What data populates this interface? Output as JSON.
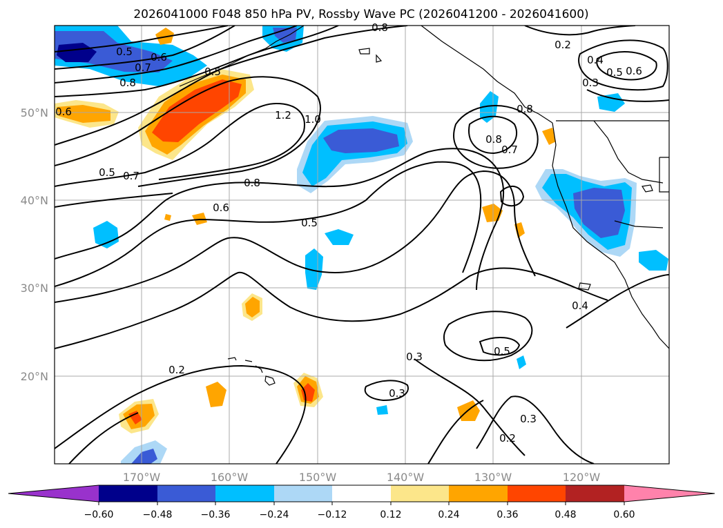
{
  "title": "2026041000 F048 850 hPa PV, Rossby Wave PC (2026041200 - 2026041600)",
  "map": {
    "lat_labels": [
      "50°N",
      "40°N",
      "30°N",
      "20°N"
    ],
    "lon_labels": [
      "170°W",
      "160°W",
      "150°W",
      "140°W",
      "130°W",
      "120°W"
    ],
    "contour_labels": [
      "0.5",
      "0.6",
      "0.7",
      "0.8",
      "0.5",
      "0.6",
      "1.2",
      "1.0",
      "0.5",
      "0.7",
      "0.8",
      "0.6",
      "0.5",
      "0.8",
      "0.8",
      "0.7",
      "0.2",
      "0.4",
      "0.5",
      "0.6",
      "0.3",
      "0.8",
      "0.4",
      "0.5",
      "0.3",
      "0.2",
      "0.3",
      "0.3",
      "0.2"
    ]
  },
  "colorbar": {
    "ticks": [
      "−0.60",
      "−0.48",
      "−0.36",
      "−0.24",
      "−0.12",
      "0.12",
      "0.24",
      "0.36",
      "0.48",
      "0.60"
    ],
    "colors": [
      "#9932cc",
      "#00008b",
      "#3a5bd6",
      "#00bfff",
      "#add8f6",
      "#ffffff",
      "#fce68a",
      "#ffa500",
      "#ff4500",
      "#b22222",
      "#ff82ab"
    ]
  },
  "colors": {
    "neg_strong": "#3a5bd6",
    "neg_mid": "#00bfff",
    "neg_weak": "#add8f6",
    "pos_weak": "#fce68a",
    "pos_mid": "#ffa500",
    "pos_strong": "#ff4500",
    "neg_extreme": "#00008b"
  }
}
